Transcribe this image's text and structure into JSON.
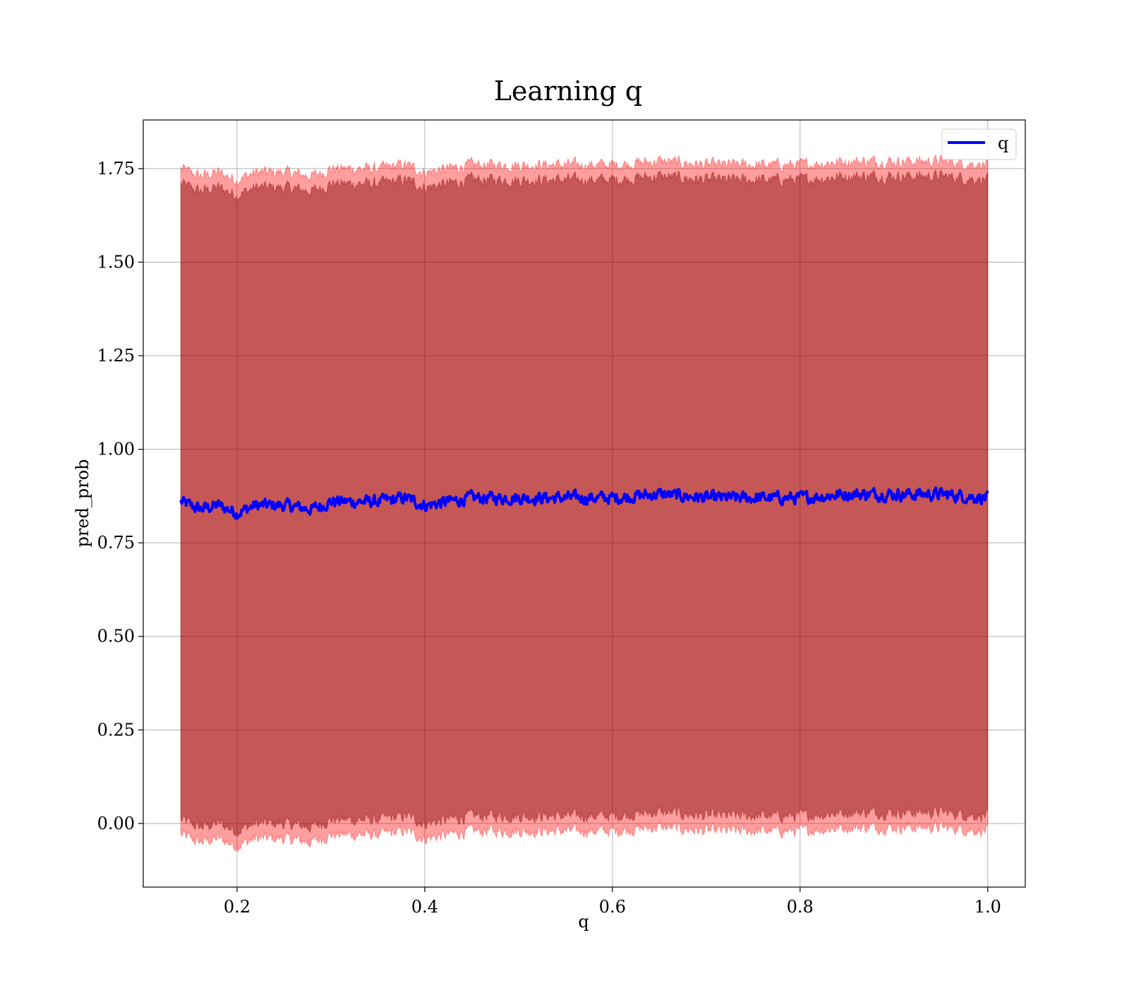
{
  "chart_data": {
    "type": "area",
    "title": "Learning q",
    "xlabel": "q",
    "ylabel": "pred_prob",
    "xlim": [
      0.1,
      1.04
    ],
    "ylim": [
      -0.17,
      1.88
    ],
    "x_ticks": [
      {
        "value": 0.2,
        "label": "0.2"
      },
      {
        "value": 0.4,
        "label": "0.4"
      },
      {
        "value": 0.6,
        "label": "0.6"
      },
      {
        "value": 0.8,
        "label": "0.8"
      },
      {
        "value": 1.0,
        "label": "1.0"
      }
    ],
    "y_ticks": [
      {
        "value": 0.0,
        "label": "0.00"
      },
      {
        "value": 0.25,
        "label": "0.25"
      },
      {
        "value": 0.5,
        "label": "0.50"
      },
      {
        "value": 0.75,
        "label": "0.75"
      },
      {
        "value": 1.0,
        "label": "1.00"
      },
      {
        "value": 1.25,
        "label": "1.25"
      },
      {
        "value": 1.5,
        "label": "1.50"
      },
      {
        "value": 1.75,
        "label": "1.75"
      }
    ],
    "grid": true,
    "legend": {
      "position": "top-right",
      "entries": [
        {
          "name": "q",
          "color": "#0000ff"
        }
      ]
    },
    "series": [
      {
        "name": "q",
        "color": "#0000ff",
        "x": [
          0.14,
          0.16,
          0.18,
          0.2,
          0.22,
          0.25,
          0.28,
          0.3,
          0.35,
          0.38,
          0.4,
          0.45,
          0.5,
          0.55,
          0.6,
          0.65,
          0.7,
          0.75,
          0.8,
          0.85,
          0.9,
          0.95,
          1.0
        ],
        "y": [
          0.86,
          0.84,
          0.85,
          0.83,
          0.85,
          0.85,
          0.84,
          0.86,
          0.86,
          0.87,
          0.85,
          0.87,
          0.87,
          0.87,
          0.87,
          0.88,
          0.87,
          0.87,
          0.87,
          0.88,
          0.88,
          0.88,
          0.87
        ]
      }
    ],
    "bands": [
      {
        "label": "outer",
        "color": "#ff0000",
        "opacity": 0.38,
        "half_width": 0.89
      },
      {
        "label": "inner",
        "color": "#800000",
        "opacity": 0.45,
        "half_width": 0.85
      }
    ]
  }
}
